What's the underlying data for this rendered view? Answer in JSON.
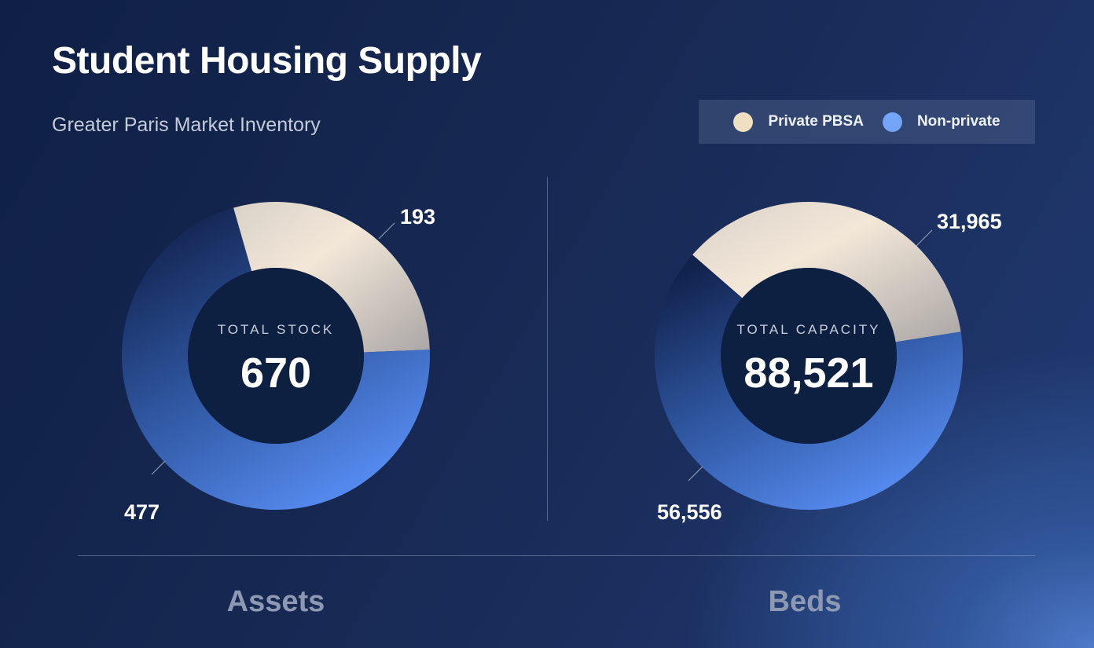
{
  "title": "Student Housing Supply",
  "subtitle": "Greater Paris Market Inventory",
  "legend": [
    {
      "label": "Private PBSA",
      "color": "#f0dfc0"
    },
    {
      "label": "Non-private",
      "color": "#74a4f8"
    }
  ],
  "chart_data": [
    {
      "type": "pie",
      "variant": "donut",
      "caption": "Assets",
      "center_label": "TOTAL STOCK",
      "center_value": "670",
      "categories": [
        "Private PBSA",
        "Non-private"
      ],
      "values": [
        193,
        477
      ],
      "value_labels": [
        "193",
        "477"
      ]
    },
    {
      "type": "pie",
      "variant": "donut",
      "caption": "Beds",
      "center_label": "TOTAL CAPACITY",
      "center_value": "88,521",
      "categories": [
        "Private PBSA",
        "Non-private"
      ],
      "values": [
        31965,
        56556
      ],
      "value_labels": [
        "31,965",
        "56,556"
      ]
    }
  ]
}
